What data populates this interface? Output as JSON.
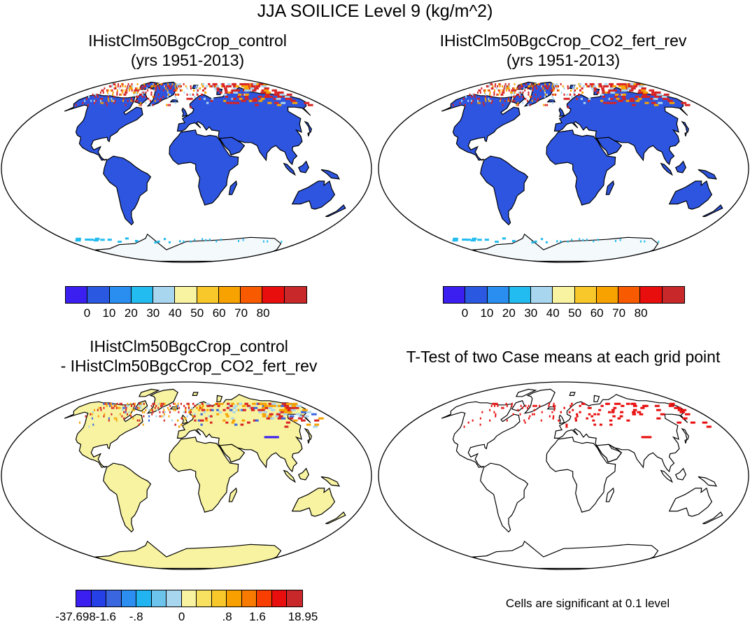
{
  "title": "JJA SOILICE Level 9 (kg/m^2)",
  "panels": [
    {
      "id": "p1",
      "title_line1": "IHistClm50BgcCrop_control",
      "title_line2": "(yrs 1951-2013)"
    },
    {
      "id": "p2",
      "title_line1": "IHistClm50BgcCrop_CO2_fert_rev",
      "title_line2": "(yrs 1951-2013)"
    },
    {
      "id": "p3",
      "title_line1": "IHistClm50BgcCrop_control",
      "title_line2": "- IHistClm50BgcCrop_CO2_fert_rev"
    },
    {
      "id": "p4",
      "title_line1": "T-Test of two Case means at each grid point",
      "title_line2": ""
    }
  ],
  "colorbar_top": {
    "colors": [
      "#3b1ff0",
      "#2b58e0",
      "#2a8ef0",
      "#22bcf0",
      "#a9d6ef",
      "#f8f3a0",
      "#f8c82a",
      "#f8a200",
      "#f85a00",
      "#e80e0e",
      "#c8282a"
    ],
    "labels": [
      "0",
      "10",
      "20",
      "30",
      "40",
      "50",
      "60",
      "70",
      "80"
    ]
  },
  "colorbar_diff": {
    "colors": [
      "#3b1ff0",
      "#2440e6",
      "#3a66df",
      "#2b8ef0",
      "#22b4f0",
      "#6cc4ec",
      "#a9d6ef",
      "#f8f3a0",
      "#f8e060",
      "#f8c82a",
      "#f8a000",
      "#f87a00",
      "#f83e00",
      "#e80e0e",
      "#c8282a"
    ],
    "labels": [
      "-37.698",
      "-1.6",
      "-.8",
      "0",
      ".8",
      "1.6",
      "18.95"
    ]
  },
  "significance_note": "Cells are significant at 0.1 level",
  "colors": {
    "land_fill": "#2e55e0",
    "diff_fill": "#f8f3a0",
    "ocean": "#ffffff",
    "significant": "#e80e0e",
    "arctic_warm": "#d82222",
    "arctic_mid": "#f8a200",
    "arctic_cool": "#a9d6ef",
    "antarctic_fill": "#f4f9fc",
    "antarctic_edge": "#22bcf0"
  }
}
